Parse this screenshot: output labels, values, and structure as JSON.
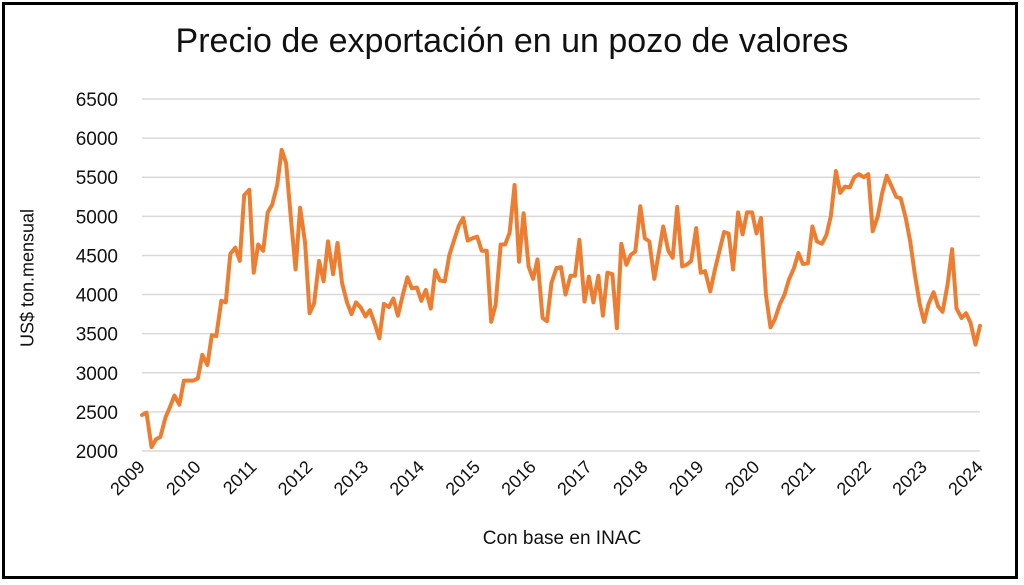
{
  "chart_data": {
    "type": "line",
    "title": "Precio de exportación en un pozo de valores",
    "xlabel": "Con base en INAC",
    "ylabel": "US$ ton.mensual",
    "ylim": [
      2000,
      6500
    ],
    "yticks": [
      2000,
      2500,
      3000,
      3500,
      4000,
      4500,
      5000,
      5500,
      6000,
      6500
    ],
    "xlim": [
      2009,
      2024
    ],
    "xticks": [
      "2009",
      "2010",
      "2011",
      "2012",
      "2013",
      "2014",
      "2015",
      "2016",
      "2017",
      "2018",
      "2019",
      "2020",
      "2021",
      "2022",
      "2023",
      "2024"
    ],
    "grid": true,
    "line_color": "#ED7D31",
    "series": [
      {
        "name": "Precio",
        "points": [
          [
            2009.0,
            2460
          ],
          [
            2009.08,
            2490
          ],
          [
            2009.17,
            2050
          ],
          [
            2009.25,
            2150
          ],
          [
            2009.33,
            2180
          ],
          [
            2009.42,
            2430
          ],
          [
            2009.5,
            2560
          ],
          [
            2009.58,
            2710
          ],
          [
            2009.67,
            2590
          ],
          [
            2009.75,
            2900
          ],
          [
            2009.83,
            2900
          ],
          [
            2009.92,
            2900
          ],
          [
            2010.0,
            2930
          ],
          [
            2010.08,
            3230
          ],
          [
            2010.17,
            3100
          ],
          [
            2010.25,
            3480
          ],
          [
            2010.33,
            3470
          ],
          [
            2010.42,
            3920
          ],
          [
            2010.5,
            3900
          ],
          [
            2010.58,
            4520
          ],
          [
            2010.67,
            4600
          ],
          [
            2010.75,
            4430
          ],
          [
            2010.83,
            5270
          ],
          [
            2010.92,
            5340
          ],
          [
            2011.0,
            4280
          ],
          [
            2011.08,
            4640
          ],
          [
            2011.17,
            4560
          ],
          [
            2011.25,
            5050
          ],
          [
            2011.33,
            5150
          ],
          [
            2011.42,
            5400
          ],
          [
            2011.5,
            5850
          ],
          [
            2011.58,
            5680
          ],
          [
            2011.67,
            4930
          ],
          [
            2011.75,
            4320
          ],
          [
            2011.83,
            5110
          ],
          [
            2011.92,
            4660
          ],
          [
            2012.0,
            3760
          ],
          [
            2012.08,
            3890
          ],
          [
            2012.17,
            4430
          ],
          [
            2012.25,
            4170
          ],
          [
            2012.33,
            4680
          ],
          [
            2012.42,
            4260
          ],
          [
            2012.5,
            4660
          ],
          [
            2012.58,
            4150
          ],
          [
            2012.67,
            3900
          ],
          [
            2012.75,
            3750
          ],
          [
            2012.83,
            3900
          ],
          [
            2012.92,
            3830
          ],
          [
            2013.0,
            3720
          ],
          [
            2013.08,
            3800
          ],
          [
            2013.17,
            3620
          ],
          [
            2013.25,
            3440
          ],
          [
            2013.33,
            3880
          ],
          [
            2013.42,
            3840
          ],
          [
            2013.5,
            3950
          ],
          [
            2013.58,
            3730
          ],
          [
            2013.67,
            4000
          ],
          [
            2013.75,
            4220
          ],
          [
            2013.83,
            4080
          ],
          [
            2013.92,
            4090
          ],
          [
            2014.0,
            3920
          ],
          [
            2014.08,
            4060
          ],
          [
            2014.17,
            3820
          ],
          [
            2014.25,
            4310
          ],
          [
            2014.33,
            4180
          ],
          [
            2014.42,
            4170
          ],
          [
            2014.5,
            4500
          ],
          [
            2014.58,
            4680
          ],
          [
            2014.67,
            4880
          ],
          [
            2014.75,
            4980
          ],
          [
            2014.83,
            4690
          ],
          [
            2014.92,
            4720
          ],
          [
            2015.0,
            4740
          ],
          [
            2015.08,
            4560
          ],
          [
            2015.17,
            4560
          ],
          [
            2015.25,
            3650
          ],
          [
            2015.33,
            3870
          ],
          [
            2015.42,
            4640
          ],
          [
            2015.5,
            4640
          ],
          [
            2015.58,
            4790
          ],
          [
            2015.67,
            5400
          ],
          [
            2015.75,
            4420
          ],
          [
            2015.83,
            5040
          ],
          [
            2015.92,
            4360
          ],
          [
            2016.0,
            4200
          ],
          [
            2016.08,
            4450
          ],
          [
            2016.17,
            3700
          ],
          [
            2016.25,
            3660
          ],
          [
            2016.33,
            4150
          ],
          [
            2016.42,
            4340
          ],
          [
            2016.5,
            4350
          ],
          [
            2016.58,
            4000
          ],
          [
            2016.67,
            4240
          ],
          [
            2016.75,
            4240
          ],
          [
            2016.83,
            4700
          ],
          [
            2016.92,
            3910
          ],
          [
            2017.0,
            4230
          ],
          [
            2017.08,
            3900
          ],
          [
            2017.17,
            4240
          ],
          [
            2017.25,
            3730
          ],
          [
            2017.33,
            4280
          ],
          [
            2017.42,
            4260
          ],
          [
            2017.5,
            3570
          ],
          [
            2017.58,
            4650
          ],
          [
            2017.67,
            4380
          ],
          [
            2017.75,
            4510
          ],
          [
            2017.83,
            4550
          ],
          [
            2017.92,
            5130
          ],
          [
            2018.0,
            4720
          ],
          [
            2018.08,
            4680
          ],
          [
            2018.17,
            4200
          ],
          [
            2018.25,
            4530
          ],
          [
            2018.33,
            4870
          ],
          [
            2018.42,
            4560
          ],
          [
            2018.5,
            4470
          ],
          [
            2018.58,
            5120
          ],
          [
            2018.67,
            4360
          ],
          [
            2018.75,
            4380
          ],
          [
            2018.83,
            4430
          ],
          [
            2018.92,
            4850
          ],
          [
            2019.0,
            4280
          ],
          [
            2019.08,
            4300
          ],
          [
            2019.17,
            4040
          ],
          [
            2019.25,
            4300
          ],
          [
            2019.33,
            4540
          ],
          [
            2019.42,
            4800
          ],
          [
            2019.5,
            4780
          ],
          [
            2019.58,
            4320
          ],
          [
            2019.67,
            5050
          ],
          [
            2019.75,
            4770
          ],
          [
            2019.83,
            5050
          ],
          [
            2019.92,
            5050
          ],
          [
            2020.0,
            4780
          ],
          [
            2020.08,
            4980
          ],
          [
            2020.17,
            3990
          ],
          [
            2020.25,
            3580
          ],
          [
            2020.33,
            3690
          ],
          [
            2020.42,
            3880
          ],
          [
            2020.5,
            4000
          ],
          [
            2020.58,
            4190
          ],
          [
            2020.67,
            4340
          ],
          [
            2020.75,
            4530
          ],
          [
            2020.83,
            4390
          ],
          [
            2020.92,
            4400
          ],
          [
            2021.0,
            4870
          ],
          [
            2021.08,
            4680
          ],
          [
            2021.17,
            4650
          ],
          [
            2021.25,
            4760
          ],
          [
            2021.33,
            5000
          ],
          [
            2021.42,
            5580
          ],
          [
            2021.5,
            5300
          ],
          [
            2021.58,
            5380
          ],
          [
            2021.67,
            5370
          ],
          [
            2021.75,
            5500
          ],
          [
            2021.83,
            5540
          ],
          [
            2021.92,
            5500
          ],
          [
            2022.0,
            5540
          ],
          [
            2022.08,
            4810
          ],
          [
            2022.17,
            5000
          ],
          [
            2022.25,
            5300
          ],
          [
            2022.33,
            5520
          ],
          [
            2022.42,
            5380
          ],
          [
            2022.5,
            5250
          ],
          [
            2022.58,
            5230
          ],
          [
            2022.67,
            4980
          ],
          [
            2022.75,
            4680
          ],
          [
            2022.83,
            4280
          ],
          [
            2022.92,
            3880
          ],
          [
            2023.0,
            3650
          ],
          [
            2023.08,
            3880
          ],
          [
            2023.17,
            4030
          ],
          [
            2023.25,
            3850
          ],
          [
            2023.33,
            3780
          ],
          [
            2023.42,
            4130
          ],
          [
            2023.5,
            4580
          ],
          [
            2023.58,
            3820
          ],
          [
            2023.67,
            3700
          ],
          [
            2023.75,
            3760
          ],
          [
            2023.83,
            3640
          ],
          [
            2023.92,
            3360
          ],
          [
            2024.0,
            3600
          ]
        ]
      }
    ]
  }
}
